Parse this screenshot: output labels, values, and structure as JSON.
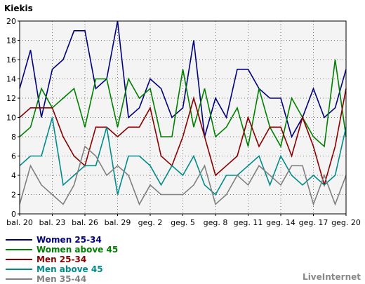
{
  "chart_data": {
    "type": "line",
    "title": "Kiekis",
    "xlabel": "",
    "ylabel": "",
    "ylim": [
      0,
      20
    ],
    "yticks": [
      0,
      2,
      4,
      6,
      8,
      10,
      12,
      14,
      16,
      18,
      20
    ],
    "x_tick_labels": [
      {
        "index": 0,
        "label": "bal. 20"
      },
      {
        "index": 3,
        "label": "bal. 23"
      },
      {
        "index": 6,
        "label": "bal. 26"
      },
      {
        "index": 9,
        "label": "bal. 29"
      },
      {
        "index": 12,
        "label": "geg. 2"
      },
      {
        "index": 15,
        "label": "geg. 5"
      },
      {
        "index": 18,
        "label": "geg. 8"
      },
      {
        "index": 21,
        "label": "geg. 11"
      },
      {
        "index": 24,
        "label": "geg. 14"
      },
      {
        "index": 27,
        "label": "geg. 17"
      },
      {
        "index": 30,
        "label": "geg. 20"
      }
    ],
    "grid": true,
    "legend_position": "bottom-left",
    "series": [
      {
        "name": "Women 25-34",
        "color": "#000080",
        "values": [
          13,
          17,
          10,
          15,
          16,
          19,
          19,
          13,
          14,
          20,
          10,
          11,
          14,
          13,
          10,
          11,
          18,
          8,
          12,
          10,
          15,
          15,
          13,
          12,
          12,
          8,
          10,
          13,
          10,
          11,
          15
        ]
      },
      {
        "name": "Women above 45",
        "color": "#008000",
        "values": [
          8,
          9,
          13,
          11,
          12,
          13,
          9,
          14,
          14,
          9,
          14,
          12,
          13,
          8,
          8,
          15,
          9,
          13,
          8,
          9,
          11,
          7,
          13,
          9,
          7,
          12,
          10,
          8,
          7,
          16,
          8
        ]
      },
      {
        "name": "Men 25-34",
        "color": "#8b0000",
        "values": [
          10,
          11,
          11,
          11,
          8,
          6,
          5,
          9,
          9,
          8,
          9,
          9,
          11,
          6,
          5,
          8,
          12,
          8,
          4,
          5,
          6,
          10,
          7,
          9,
          9,
          6,
          10,
          7,
          3,
          7,
          13
        ]
      },
      {
        "name": "Men above 45",
        "color": "#008b8b",
        "values": [
          5,
          6,
          6,
          10,
          3,
          4,
          5,
          5,
          9,
          2,
          6,
          6,
          5,
          3,
          5,
          4,
          6,
          3,
          2,
          4,
          4,
          5,
          6,
          3,
          6,
          4,
          3,
          4,
          3,
          4,
          9
        ]
      },
      {
        "name": "Men 35-44",
        "color": "#808080",
        "values": [
          1,
          5,
          3,
          2,
          1,
          3,
          7,
          6,
          4,
          5,
          4,
          1,
          3,
          2,
          2,
          2,
          3,
          5,
          1,
          2,
          4,
          3,
          5,
          4,
          3,
          5,
          5,
          1,
          4,
          1,
          4
        ]
      }
    ]
  },
  "credit": "LiveInternet"
}
